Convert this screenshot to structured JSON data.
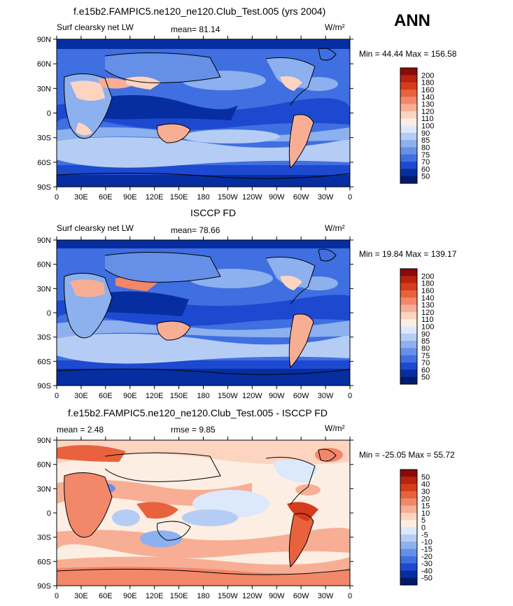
{
  "season": "ANN",
  "units": "W/m²",
  "lat_labels": [
    "90N",
    "60N",
    "30N",
    "0",
    "30S",
    "60S",
    "90S"
  ],
  "lon_labels": [
    "0",
    "30E",
    "60E",
    "90E",
    "120E",
    "150E",
    "180",
    "150W",
    "120W",
    "90W",
    "60W",
    "30W",
    "0"
  ],
  "panels": [
    {
      "title": "f.e15b2.FAMPIC5.ne120_ne120.Club_Test.005 (yrs 2004)",
      "left_label": "Surf clearsky net LW",
      "stat1": "mean=  81.14",
      "stat2": "",
      "minmax": "Min =  44.44 Max = 156.58",
      "scale": "abs",
      "colorbar_labels": [
        "200",
        "180",
        "160",
        "140",
        "130",
        "120",
        "110",
        "100",
        "90",
        "85",
        "80",
        "75",
        "70",
        "60",
        "50"
      ]
    },
    {
      "title": "ISCCP FD",
      "left_label": "Surf clearsky net LW",
      "stat1": "mean=  78.66",
      "stat2": "",
      "minmax": "Min =  19.84 Max = 139.17",
      "scale": "abs",
      "colorbar_labels": [
        "200",
        "180",
        "160",
        "140",
        "130",
        "120",
        "110",
        "100",
        "90",
        "85",
        "80",
        "75",
        "70",
        "60",
        "50"
      ]
    },
    {
      "title": "f.e15b2.FAMPIC5.ne120_ne120.Club_Test.005 - ISCCP FD",
      "left_label": "mean =   2.48",
      "stat1": "rmse =   9.85",
      "stat2": "",
      "minmax": "Min = -25.05 Max =  55.72",
      "scale": "diff",
      "colorbar_labels": [
        "50",
        "40",
        "30",
        "20",
        "15",
        "10",
        "5",
        "0",
        "-5",
        "-10",
        "-15",
        "-20",
        "-30",
        "-40",
        "-50"
      ]
    }
  ],
  "colors": {
    "abs_scale": [
      "#8b0a0a",
      "#b8220f",
      "#d63c1c",
      "#e8623d",
      "#f2876a",
      "#f8ae94",
      "#fcd4c0",
      "#fdeee3",
      "#dce8fb",
      "#b5cdf5",
      "#8db0ef",
      "#6690e8",
      "#3f6fe0",
      "#1d49d0",
      "#072ea0",
      "#001a6e"
    ],
    "diff_scale": [
      "#8b0a0a",
      "#b8220f",
      "#d63c1c",
      "#e8623d",
      "#f2876a",
      "#f8ae94",
      "#fcd4c0",
      "#fdeee3",
      "#dce8fb",
      "#b5cdf5",
      "#8db0ef",
      "#6690e8",
      "#3f6fe0",
      "#1d49d0",
      "#072ea0",
      "#001a6e"
    ]
  }
}
